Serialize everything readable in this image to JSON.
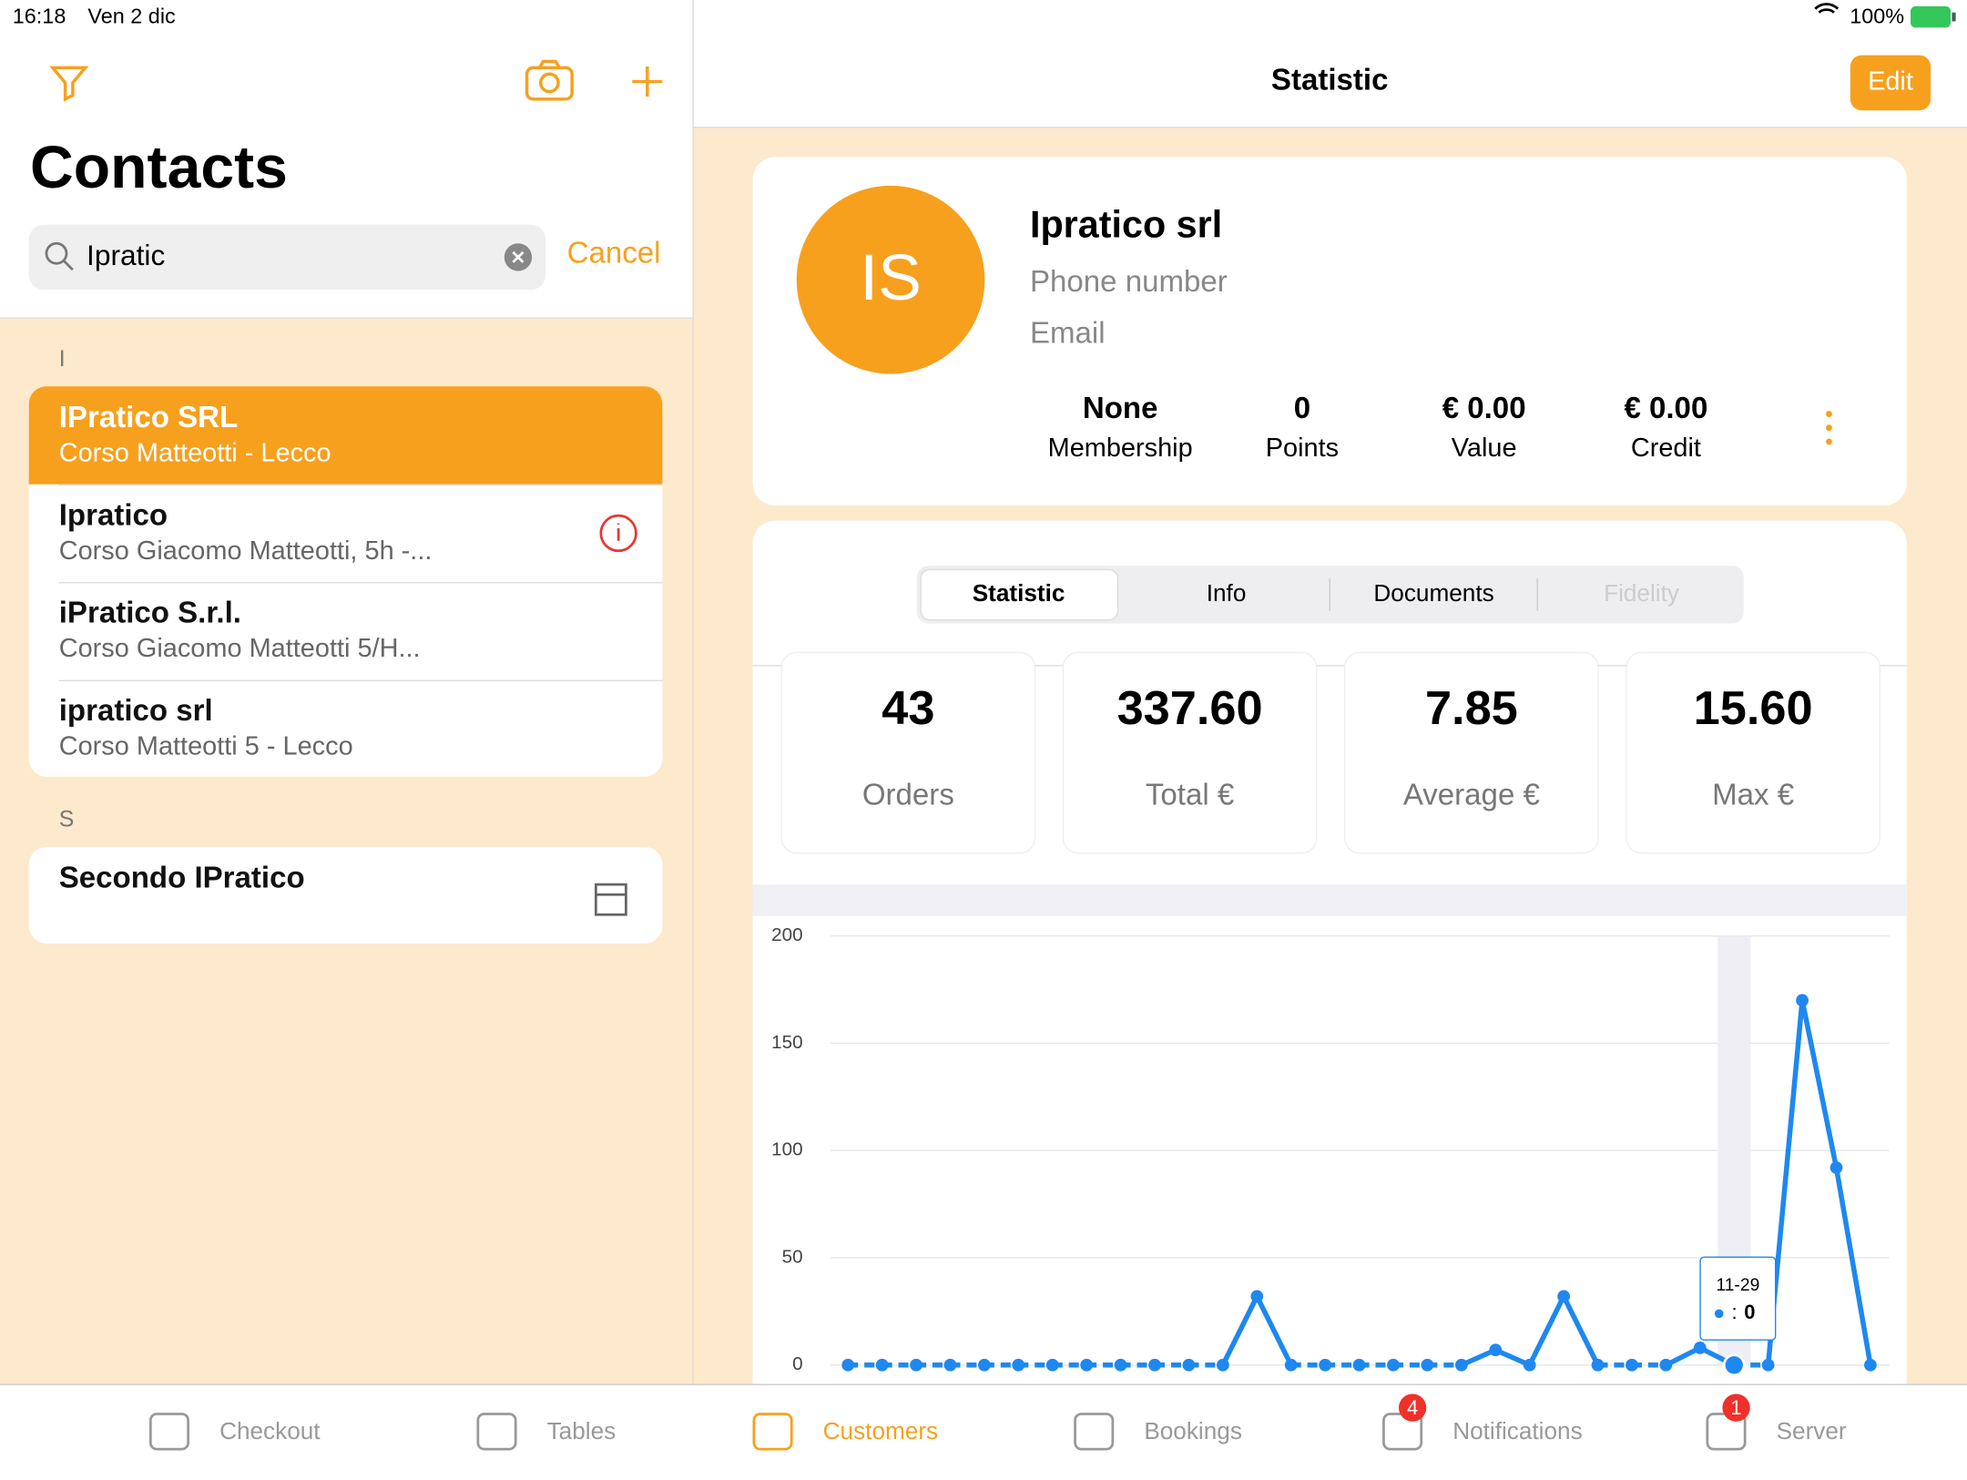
{
  "status_bar": {
    "time": "16:18",
    "date": "Ven 2 dic",
    "battery": "100%"
  },
  "contacts": {
    "title": "Contacts",
    "search": "Ipratic",
    "cancel": "Cancel",
    "sections": [
      {
        "letter": "I",
        "items": [
          {
            "name": "IPratico SRL",
            "address": "Corso Matteotti  - Lecco"
          },
          {
            "name": "Ipratico",
            "address": "Corso Giacomo Matteotti, 5h  -..."
          },
          {
            "name": "iPratico S.r.l.",
            "address": "Corso Giacomo Matteotti 5/H..."
          },
          {
            "name": "ipratico srl",
            "address": "Corso Matteotti 5 - Lecco"
          }
        ]
      },
      {
        "letter": "S",
        "items": [
          {
            "name": "Secondo IPratico"
          }
        ]
      }
    ]
  },
  "detail": {
    "title": "Statistic",
    "edit": "Edit",
    "initials": "IS",
    "name": "Ipratico srl",
    "phone": "Phone number",
    "email": "Email",
    "summary": [
      {
        "value": "None",
        "label": "Membership"
      },
      {
        "value": "0",
        "label": "Points"
      },
      {
        "value": "€ 0.00",
        "label": "Value"
      },
      {
        "value": "€ 0.00",
        "label": "Credit"
      }
    ],
    "tabs": [
      "Statistic",
      "Info",
      "Documents",
      "Fidelity"
    ],
    "stats": [
      {
        "value": "43",
        "label": "Orders"
      },
      {
        "value": "337.60",
        "label": "Total €"
      },
      {
        "value": "7.85",
        "label": "Average €"
      },
      {
        "value": "15.60",
        "label": "Max €"
      }
    ]
  },
  "chart_data": {
    "type": "line",
    "color": "#1e88f0",
    "categories": [
      null,
      null,
      null,
      null,
      null,
      null,
      null,
      null,
      null,
      null,
      null,
      null,
      null,
      null,
      null,
      null,
      null,
      null,
      null,
      null,
      null,
      null,
      null,
      null,
      null,
      null,
      "11-29",
      null,
      null,
      null,
      null
    ],
    "values": [
      0,
      0,
      0,
      0,
      0,
      0,
      0,
      0,
      0,
      0,
      0,
      0,
      32,
      0,
      0,
      0,
      0,
      0,
      0,
      7,
      0,
      32,
      0,
      0,
      0,
      8,
      0,
      0,
      170,
      92,
      0
    ],
    "ylim": [
      0,
      200
    ],
    "yticks": [
      0,
      50,
      100,
      150,
      200
    ],
    "grid": true,
    "tooltip_separator": ":"
  },
  "tab_bar": [
    {
      "label": "Checkout"
    },
    {
      "label": "Tables"
    },
    {
      "label": "Customers"
    },
    {
      "label": "Bookings"
    },
    {
      "label": "Notifications",
      "badge": "4"
    },
    {
      "label": "Server",
      "badge": "1"
    }
  ]
}
